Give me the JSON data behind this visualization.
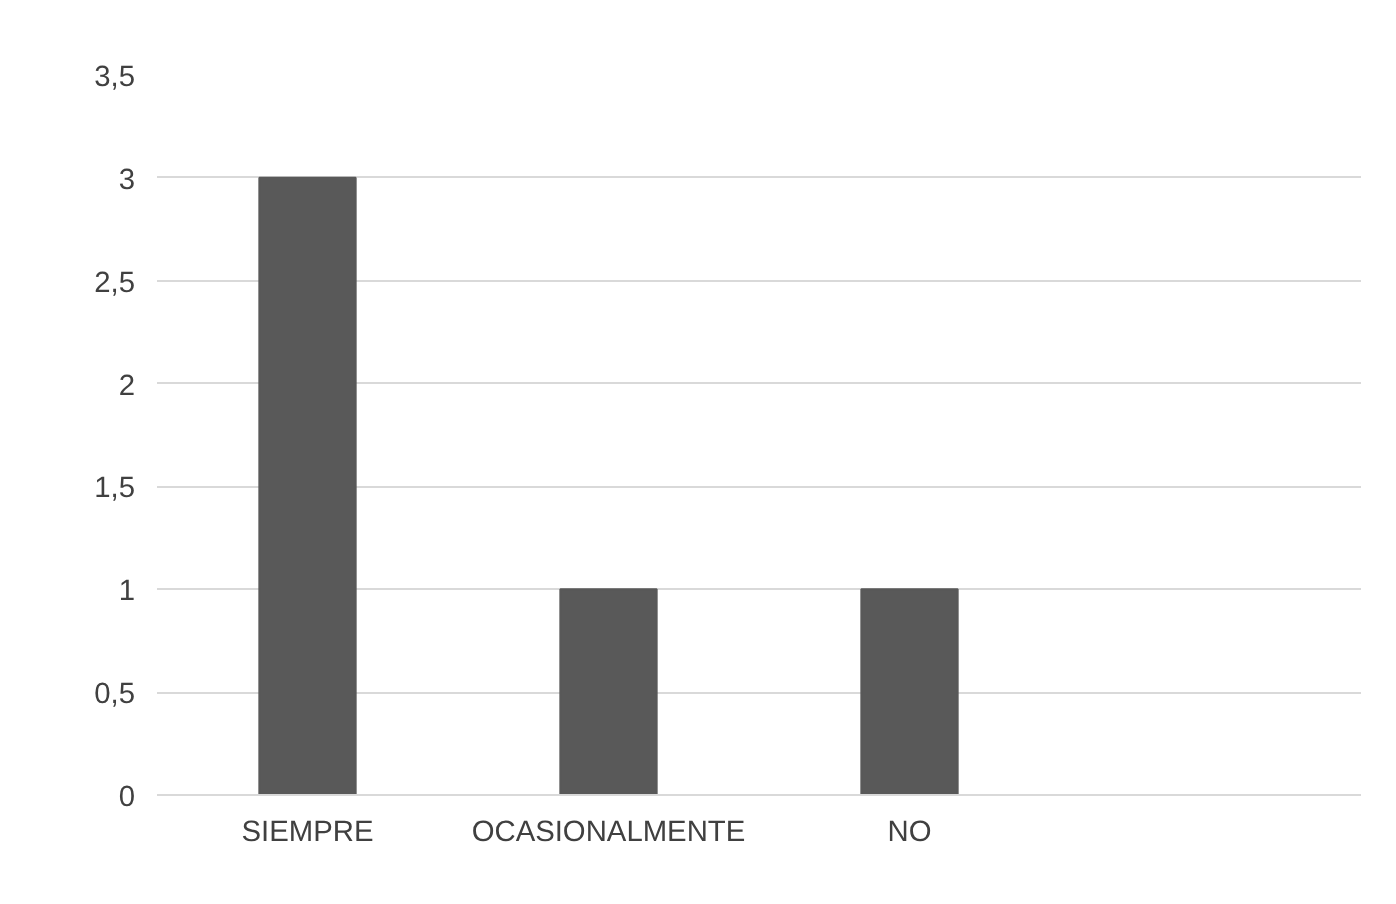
{
  "chart_data": {
    "type": "bar",
    "categories": [
      "SIEMPRE",
      "OCASIONALMENTE",
      "NO",
      null
    ],
    "values": [
      3,
      1,
      1,
      null
    ],
    "color": "#595959",
    "ylim": [
      0,
      3.5
    ],
    "yticks": [
      0,
      {
        "value": 0.5,
        "label": "0,5"
      },
      1,
      {
        "value": 1.5,
        "label": "1,5"
      },
      2,
      {
        "value": 2.5,
        "label": "2,5"
      },
      3,
      {
        "value": 3.5,
        "label": "3,5"
      }
    ],
    "grid": "y"
  }
}
